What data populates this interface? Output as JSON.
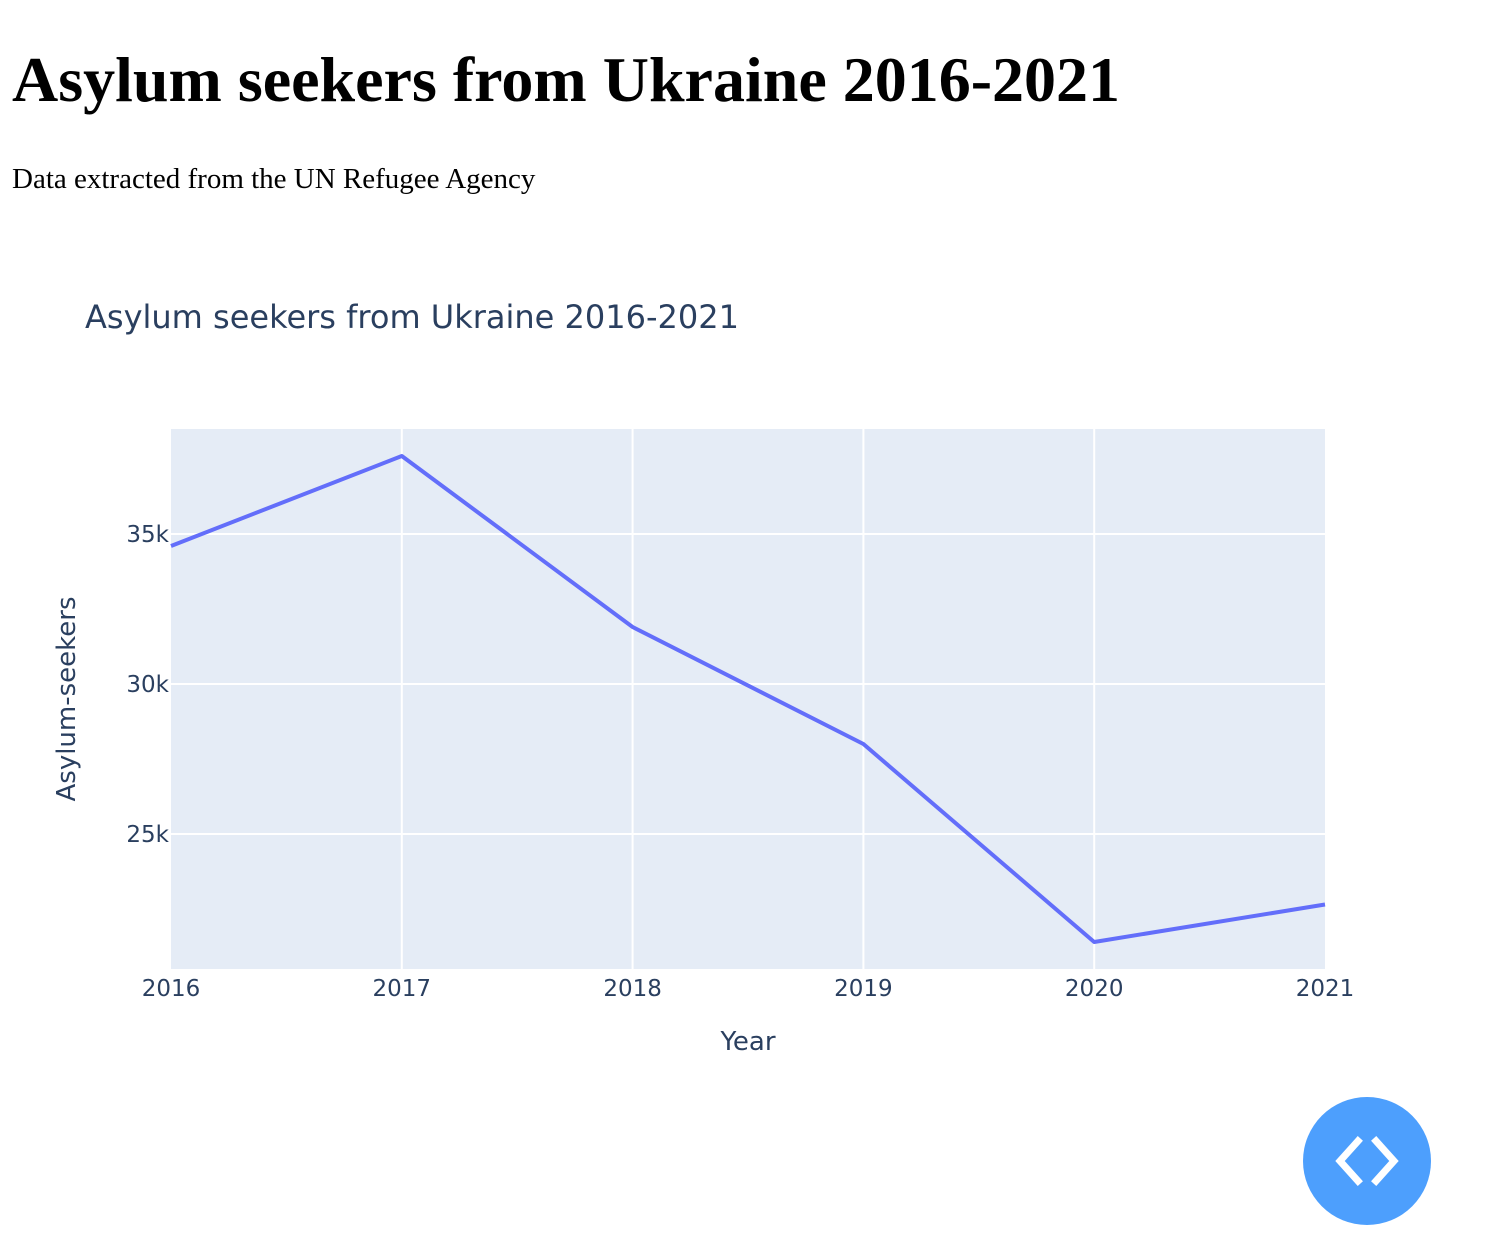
{
  "page": {
    "heading": "Asylum seekers from Ukraine 2016-2021",
    "subheading": "Data extracted from the UN Refugee Agency"
  },
  "fab": {
    "icon": "code-icon",
    "color": "#4d9ffd"
  },
  "chart_data": {
    "type": "line",
    "title": "Asylum seekers from Ukraine 2016-2021",
    "xlabel": "Year",
    "ylabel": "Asylum-seekers",
    "x": [
      2016,
      2017,
      2018,
      2019,
      2020,
      2021
    ],
    "series": [
      {
        "values": [
          34600,
          37600,
          31900,
          28000,
          21400,
          22650
        ],
        "color": "#636efa"
      }
    ],
    "xlim": [
      2016,
      2021
    ],
    "ylim": [
      20500,
      38500
    ],
    "x_ticks": [
      "2016",
      "2017",
      "2018",
      "2019",
      "2020",
      "2021"
    ],
    "y_ticks": [
      {
        "value": 25000,
        "label": "25k"
      },
      {
        "value": 30000,
        "label": "30k"
      },
      {
        "value": 35000,
        "label": "35k"
      }
    ],
    "grid": true,
    "plot_background": "#e5ecf6",
    "legend": "none"
  }
}
